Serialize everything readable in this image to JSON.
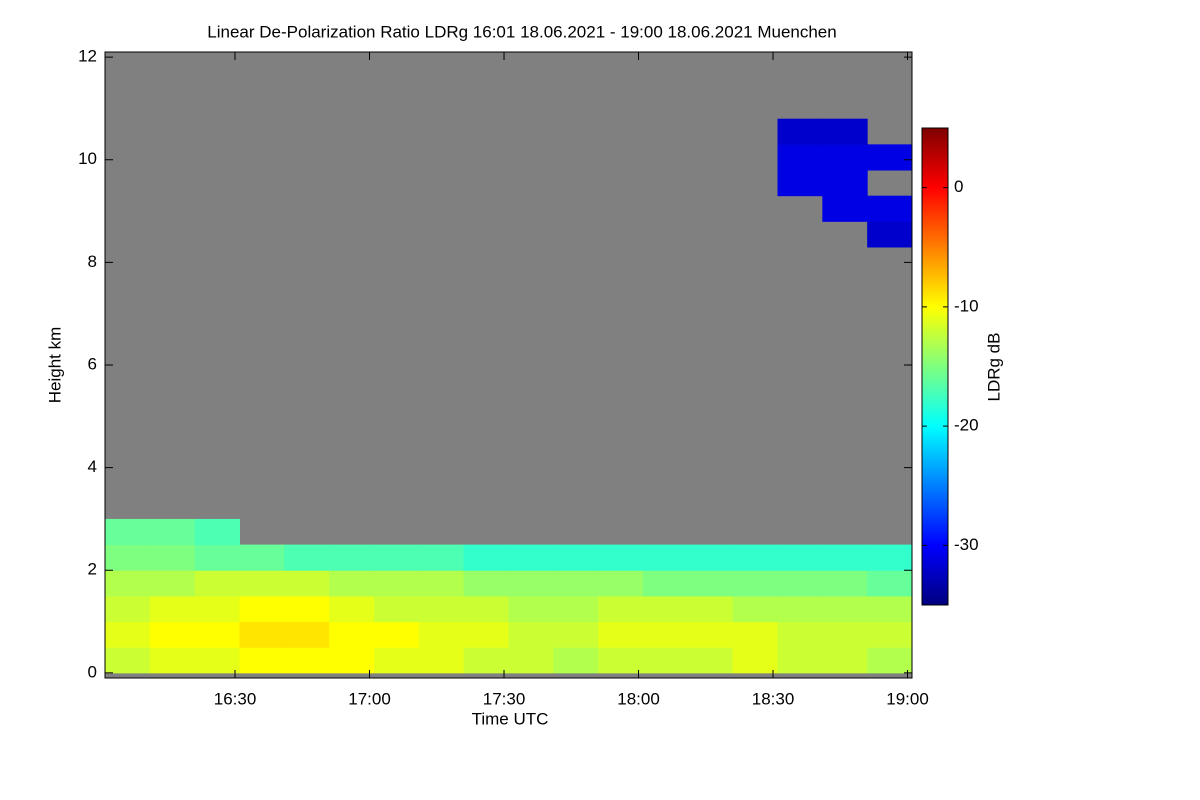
{
  "chart_data": {
    "type": "heatmap",
    "title": "Linear De-Polarization Ratio LDRg   16:01 18.06.2021 - 19:00 18.06.2021 Muenchen",
    "x_label": "Time UTC",
    "y_label": "Height km",
    "colorbar_label": "LDRg dB",
    "xlim": [
      961,
      1141
    ],
    "xticks": [
      {
        "value": 990,
        "label": "16:30"
      },
      {
        "value": 1020,
        "label": "17:00"
      },
      {
        "value": 1050,
        "label": "17:30"
      },
      {
        "value": 1080,
        "label": "18:00"
      },
      {
        "value": 1110,
        "label": "18:30"
      },
      {
        "value": 1140,
        "label": "19:00"
      }
    ],
    "ylim": [
      -0.1,
      12.1
    ],
    "yticks": [
      0,
      2,
      4,
      6,
      8,
      10,
      12
    ],
    "clim": [
      -35,
      5
    ],
    "cticks": [
      0,
      -10,
      -20,
      -30
    ],
    "colormap": [
      "#00007f",
      "#0000ff",
      "#007fff",
      "#00ffff",
      "#7fff7f",
      "#ffff00",
      "#ff7f00",
      "#ff0000",
      "#7f0000"
    ],
    "missing_color": "#808080",
    "xbins": [
      961,
      971,
      981,
      991,
      1001,
      1011,
      1021,
      1031,
      1041,
      1051,
      1061,
      1071,
      1081,
      1091,
      1101,
      1111,
      1121,
      1131,
      1141
    ],
    "ybins": [
      0,
      0.5,
      1,
      1.5,
      2,
      2.5,
      3,
      8.3,
      8.8,
      9.3,
      9.8,
      10.3,
      10.8,
      12
    ],
    "z": [
      [
        -12,
        -11,
        -11,
        -10,
        -10,
        -10,
        -11,
        -11,
        -12,
        -12,
        -13,
        -12,
        -12,
        -12,
        -11,
        -12,
        -12,
        -13
      ],
      [
        -11,
        -10,
        -10,
        -9,
        -9,
        -10,
        -10,
        -11,
        -11,
        -12,
        -12,
        -11,
        -11,
        -11,
        -11,
        -12,
        -12,
        -12
      ],
      [
        -12,
        -11,
        -11,
        -10,
        -10,
        -11,
        -12,
        -12,
        -12,
        -13,
        -13,
        -12,
        -12,
        -12,
        -13,
        -13,
        -13,
        -13
      ],
      [
        -13,
        -13,
        -12,
        -12,
        -12,
        -13,
        -13,
        -13,
        -14,
        -14,
        -14,
        -14,
        -15,
        -15,
        -15,
        -15,
        -15,
        -16
      ],
      [
        -15,
        -15,
        -16,
        -16,
        -17,
        -17,
        -17,
        -17,
        -18,
        -18,
        -18,
        -18,
        -18,
        -18,
        -18,
        -18,
        -18,
        -18
      ],
      [
        -16,
        -16,
        -17,
        null,
        null,
        null,
        null,
        null,
        null,
        null,
        null,
        null,
        null,
        null,
        null,
        null,
        null,
        null
      ],
      [
        null,
        null,
        null,
        null,
        null,
        null,
        null,
        null,
        null,
        null,
        null,
        null,
        null,
        null,
        null,
        null,
        null,
        null
      ],
      [
        null,
        null,
        null,
        null,
        null,
        null,
        null,
        null,
        null,
        null,
        null,
        null,
        null,
        null,
        null,
        null,
        null,
        -32
      ],
      [
        null,
        null,
        null,
        null,
        null,
        null,
        null,
        null,
        null,
        null,
        null,
        null,
        null,
        null,
        null,
        null,
        -31,
        -31
      ],
      [
        null,
        null,
        null,
        null,
        null,
        null,
        null,
        null,
        null,
        null,
        null,
        null,
        null,
        null,
        null,
        -31,
        -31,
        null
      ],
      [
        null,
        null,
        null,
        null,
        null,
        null,
        null,
        null,
        null,
        null,
        null,
        null,
        null,
        null,
        null,
        -31,
        -31,
        -31
      ],
      [
        null,
        null,
        null,
        null,
        null,
        null,
        null,
        null,
        null,
        null,
        null,
        null,
        null,
        null,
        null,
        -32,
        -32,
        null
      ],
      [
        null,
        null,
        null,
        null,
        null,
        null,
        null,
        null,
        null,
        null,
        null,
        null,
        null,
        null,
        null,
        null,
        null,
        null
      ]
    ]
  }
}
